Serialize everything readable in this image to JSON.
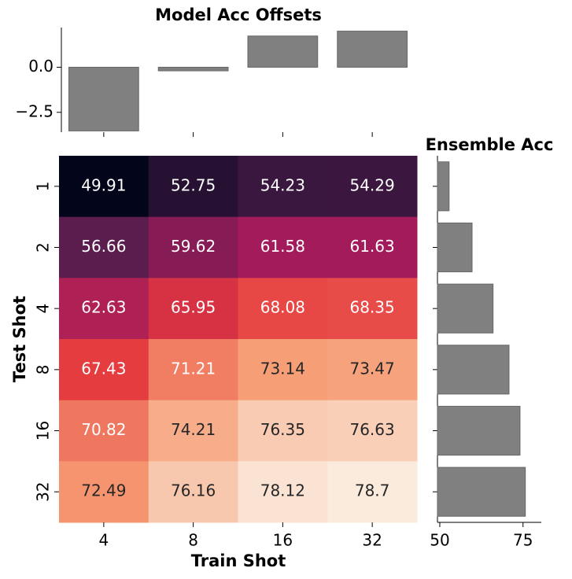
{
  "chart_data": [
    {
      "type": "bar",
      "title": "Model Acc Offsets",
      "values": [
        -3.53,
        -0.2,
        1.73,
        2.0
      ],
      "color": "#808080",
      "ylim": [
        -3.6,
        2.2
      ],
      "yticks": [
        {
          "value": -2.5,
          "label": "−2.5"
        },
        {
          "value": 0,
          "label": "0.0"
        }
      ]
    },
    {
      "type": "heatmap",
      "xlabel": "Train Shot",
      "ylabel": "Test Shot",
      "x": [
        "4",
        "8",
        "16",
        "32"
      ],
      "y": [
        "1",
        "2",
        "4",
        "8",
        "16",
        "32"
      ],
      "colormap": "rocket",
      "values": [
        [
          49.91,
          52.75,
          54.23,
          54.29
        ],
        [
          56.66,
          59.62,
          61.58,
          61.63
        ],
        [
          62.63,
          65.95,
          68.08,
          68.35
        ],
        [
          67.43,
          71.21,
          73.14,
          73.47
        ],
        [
          70.82,
          74.21,
          76.35,
          76.63
        ],
        [
          72.49,
          76.16,
          78.12,
          78.7
        ]
      ]
    },
    {
      "type": "barh",
      "title": "Ensemble Acc",
      "values": [
        52.8,
        59.7,
        66.0,
        70.8,
        74.1,
        75.7
      ],
      "color": "#808080",
      "xlim": [
        49.3,
        80.5
      ],
      "xticks": [
        50,
        75
      ]
    }
  ]
}
